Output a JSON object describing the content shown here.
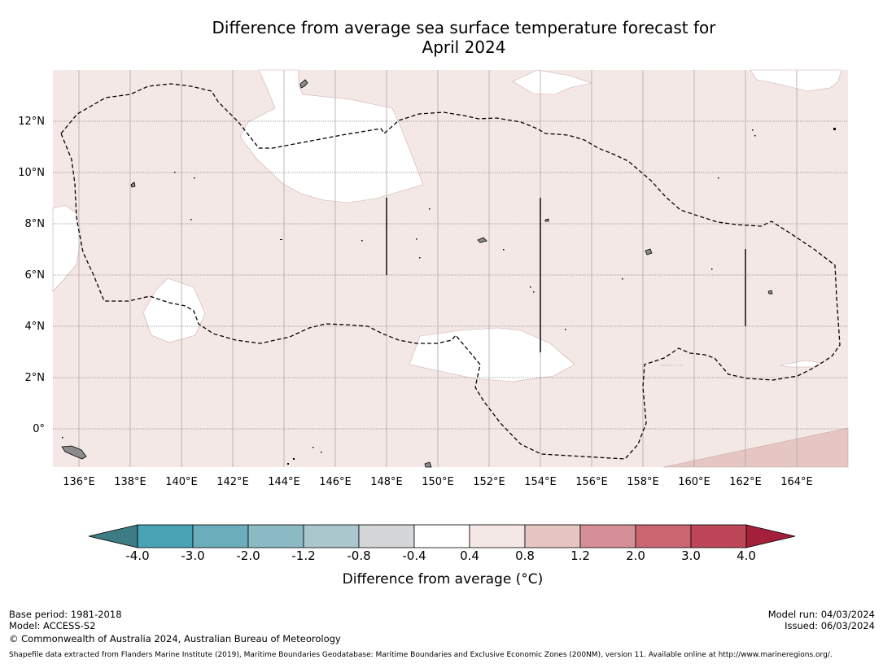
{
  "title_line1": "Difference from average sea surface temperature forecast for",
  "title_line2": "April 2024",
  "map": {
    "lon_labels": [
      "136°E",
      "138°E",
      "140°E",
      "142°E",
      "144°E",
      "146°E",
      "148°E",
      "150°E",
      "152°E",
      "154°E",
      "156°E",
      "158°E",
      "160°E",
      "162°E",
      "164°E"
    ],
    "lat_labels": [
      "12°N",
      "10°N",
      "8°N",
      "6°N",
      "4°N",
      "2°N",
      "0°"
    ],
    "lon_range": [
      135,
      166
    ],
    "lat_range": [
      -1.5,
      14
    ],
    "background_anomaly_color": "#f4e8e7",
    "neutral_color": "#ffffff",
    "warm_corner_color": "#e6c6c3"
  },
  "colorbar": {
    "labels": [
      "-4.0",
      "-3.0",
      "-2.0",
      "-1.2",
      "-0.8",
      "-0.4",
      "0.4",
      "0.8",
      "1.2",
      "2.0",
      "3.0",
      "4.0"
    ],
    "colors": [
      "#48a3b4",
      "#6aadbb",
      "#8bb9c4",
      "#a9c7cc",
      "#d4d6d7",
      "#ffffff",
      "#f4e8e7",
      "#e6c6c3",
      "#d58f96",
      "#c96670",
      "#bd4658"
    ],
    "low_extend_color": "#3d7c85",
    "high_extend_color": "#a4203a",
    "title": "Difference from average (°C)"
  },
  "footer": {
    "base_period": "Base period: 1981-2018",
    "model": "Model: ACCESS-S2",
    "copyright": "© Commonwealth of Australia 2024, Australian Bureau of Meteorology",
    "model_run": "Model run: 04/03/2024",
    "issued": "Issued: 06/03/2024",
    "shapefile_note": "Shapefile data extracted from Flanders Marine Institute (2019), Maritime Boundaries Geodatabase: Maritime Boundaries and Exclusive Economic Zones (200NM), version 11. Available online at http://www.marineregions.org/."
  }
}
